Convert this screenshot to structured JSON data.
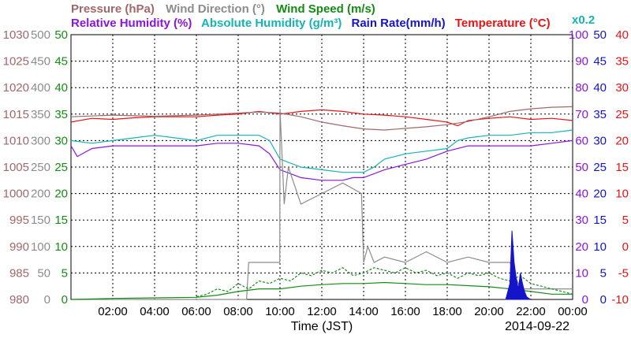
{
  "header": {
    "row1": [
      {
        "text": "Pressure (hPa)",
        "color": "#a0686a"
      },
      {
        "text": "Wind Direction (°)",
        "color": "#8c8c8c"
      },
      {
        "text": "Wind Speed (m/s)",
        "color": "#148c14"
      }
    ],
    "row2": [
      {
        "text": "Relative Humidity (%)",
        "color": "#8c14dc"
      },
      {
        "text": "Absolute Humidity (g/m³)",
        "color": "#14b4b4"
      },
      {
        "text": "Rain Rate(mm/h)",
        "color": "#1414c8"
      },
      {
        "text": "Temperature (°C)",
        "color": "#e61414"
      }
    ],
    "x02": {
      "text": "x0.2",
      "color": "#14b4b4"
    }
  },
  "axes": {
    "left_pressure": {
      "color": "#a0686a",
      "ticks": [
        "980",
        "985",
        "990",
        "995",
        "1000",
        "1005",
        "1010",
        "1015",
        "1020",
        "1025",
        "1030"
      ]
    },
    "left_direction": {
      "color": "#8c8c8c",
      "ticks": [
        "0",
        "50",
        "100",
        "150",
        "200",
        "250",
        "300",
        "350",
        "400",
        "450",
        "500"
      ]
    },
    "left_speed": {
      "color": "#148c14",
      "ticks": [
        "0",
        "5",
        "10",
        "15",
        "20",
        "25",
        "30",
        "35",
        "40",
        "45",
        "50"
      ]
    },
    "right_humidity": {
      "color": "#8c14dc",
      "ticks": [
        "0",
        "10",
        "20",
        "30",
        "40",
        "50",
        "60",
        "70",
        "80",
        "90",
        "100"
      ]
    },
    "right_rain": {
      "color": "#1414c8",
      "ticks": [
        "0",
        "5",
        "10",
        "15",
        "20",
        "25",
        "30",
        "35",
        "40",
        "45",
        "50"
      ]
    },
    "right_temp": {
      "color": "#e61414",
      "ticks": [
        "-10",
        "-5",
        "0",
        "5",
        "10",
        "15",
        "20",
        "25",
        "30",
        "35",
        "40"
      ]
    }
  },
  "x_ticks": [
    "02:00",
    "04:00",
    "06:00",
    "08:00",
    "10:00",
    "12:00",
    "14:00",
    "16:00",
    "18:00",
    "20:00",
    "22:00",
    "00:00"
  ],
  "xlabel": "Time (JST)",
  "date": "2014-09-22",
  "chart_data": {
    "type": "line",
    "x_unit": "hours (JST)",
    "xlim": [
      0,
      24
    ],
    "series": [
      {
        "name": "Temperature (°C)",
        "color": "#e61414",
        "axis": "right_temp",
        "x": [
          0,
          1,
          2,
          3,
          4,
          5,
          6,
          7,
          8,
          9,
          10,
          11,
          12,
          13,
          14,
          15,
          16,
          17,
          18,
          18.5,
          19,
          20,
          21,
          22,
          23,
          24
        ],
        "y": [
          23.5,
          24.2,
          24,
          24.3,
          24.5,
          24.5,
          24.5,
          24.8,
          25,
          25.5,
          25,
          25.5,
          25.8,
          25.5,
          25,
          24.8,
          24.5,
          24,
          23.5,
          22.8,
          23.8,
          24.2,
          24.5,
          24,
          24.2,
          23.8
        ]
      },
      {
        "name": "Pressure (hPa)",
        "color": "#a0686a",
        "axis": "left_pressure",
        "x": [
          0,
          2,
          4,
          6,
          7,
          8,
          9,
          10,
          11,
          12,
          13,
          14,
          15,
          16,
          17,
          18,
          19,
          20,
          21,
          22,
          23,
          24
        ],
        "y": [
          1014.5,
          1014.8,
          1014.6,
          1014.8,
          1015,
          1015.2,
          1015.4,
          1015.2,
          1014.5,
          1013.5,
          1012.8,
          1012.2,
          1012,
          1012.3,
          1012.6,
          1013,
          1013.6,
          1014.5,
          1015.5,
          1016,
          1016.3,
          1016.4
        ]
      },
      {
        "name": "Absolute Humidity (g/m³, x0.2)",
        "color": "#14b4b4",
        "axis": "right_humidity",
        "x": [
          0,
          1,
          2,
          3,
          4,
          5,
          6,
          7,
          8,
          9,
          9.5,
          10,
          11,
          12,
          13,
          14,
          14.5,
          15,
          16,
          17,
          18,
          18.5,
          19,
          20,
          21,
          22,
          23,
          24
        ],
        "y": [
          60,
          59,
          60,
          61,
          62,
          61,
          60,
          62,
          62,
          62,
          60,
          53,
          50,
          49,
          48,
          48,
          50,
          53,
          55,
          56,
          57,
          60,
          61,
          62,
          62,
          63,
          63,
          64
        ]
      },
      {
        "name": "Relative Humidity (%)",
        "color": "#8c14dc",
        "axis": "right_humidity",
        "x": [
          0,
          0.3,
          1,
          2,
          3,
          4,
          5,
          6,
          7,
          8,
          9,
          9.5,
          10,
          11,
          12,
          13,
          13.5,
          14,
          15,
          16,
          17,
          18,
          19,
          20,
          21,
          22,
          23,
          24
        ],
        "y": [
          58,
          54,
          57,
          58,
          58,
          58,
          58,
          58,
          59,
          59,
          58,
          55,
          49,
          46,
          45,
          45,
          46,
          46,
          49,
          51,
          53,
          56,
          58,
          58,
          58,
          58,
          59,
          60
        ]
      },
      {
        "name": "Wind Direction (°)",
        "color": "#8c8c8c",
        "axis": "left_direction",
        "x": [
          0,
          7.5,
          8.4,
          8.5,
          9.99,
          10,
          10.2,
          10.4,
          11,
          12,
          13,
          13.9,
          14,
          14.2,
          14.5,
          15,
          16,
          17,
          18,
          19,
          20,
          21,
          21.5,
          22,
          24
        ],
        "y": [
          0,
          0,
          0,
          70,
          70,
          360,
          180,
          250,
          180,
          200,
          220,
          200,
          70,
          100,
          70,
          80,
          70,
          90,
          70,
          80,
          70,
          70,
          20,
          20,
          20
        ]
      },
      {
        "name": "Wind Speed (m/s)",
        "color": "#148c14",
        "axis": "left_speed",
        "x": [
          0,
          2,
          4,
          6,
          7,
          8,
          9,
          10,
          11,
          12,
          13,
          14,
          15,
          16,
          17,
          18,
          19,
          20,
          21,
          22,
          23,
          24
        ],
        "y": [
          0,
          0.2,
          0.3,
          0.4,
          0.8,
          1.5,
          2,
          2,
          2.5,
          2.8,
          3,
          3,
          3.2,
          3,
          2.8,
          2.8,
          2.6,
          2.4,
          2,
          1.5,
          1,
          1
        ]
      },
      {
        "name": "Wind Speed gust (m/s)",
        "color": "#148c14",
        "axis": "left_speed",
        "dashed": true,
        "x": [
          6,
          6.5,
          7,
          7.5,
          8,
          8.5,
          9,
          9.5,
          10,
          10.5,
          11,
          11.5,
          12,
          12.5,
          13,
          13.5,
          14,
          14.5,
          15,
          15.5,
          16,
          16.5,
          17,
          17.5,
          18,
          18.5,
          19,
          19.5,
          20,
          20.5,
          21,
          21.5,
          22,
          22.5,
          23,
          23.5,
          24
        ],
        "y": [
          0.5,
          1,
          2,
          1.5,
          3,
          2,
          3.5,
          3,
          4,
          3.5,
          5,
          4.5,
          5.5,
          5,
          6,
          4.5,
          5,
          6,
          5.5,
          5,
          6,
          5,
          5.5,
          4.5,
          5,
          4,
          5,
          4.5,
          5,
          4,
          3.5,
          4.5,
          3,
          2.5,
          2,
          1.5,
          1
        ]
      },
      {
        "name": "Rain Rate(mm/h)",
        "color": "#1414c8",
        "axis": "right_rain",
        "type": "area",
        "x": [
          20.8,
          21,
          21.1,
          21.2,
          21.3,
          21.4,
          21.5,
          21.6,
          21.7,
          21.8,
          21.9,
          22
        ],
        "y": [
          0,
          3,
          13,
          7,
          4,
          2,
          5,
          3,
          1.5,
          0.5,
          0.2,
          0
        ]
      }
    ]
  }
}
